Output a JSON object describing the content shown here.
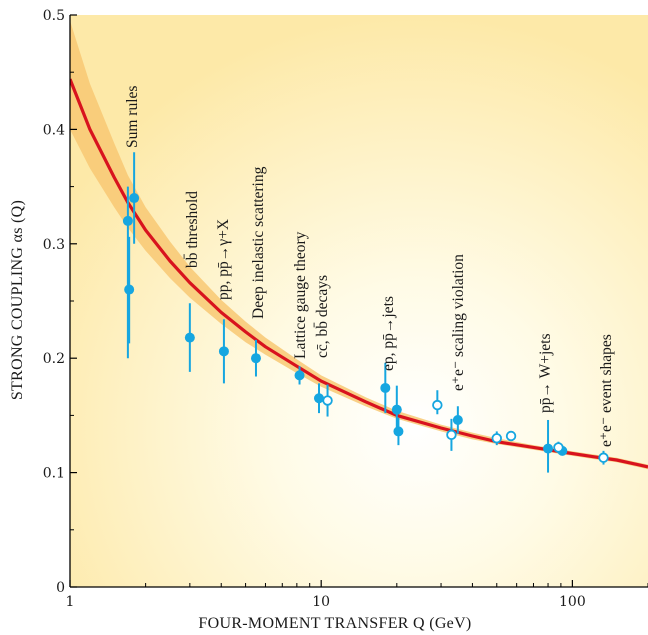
{
  "chart_data": {
    "type": "scatter",
    "xlabel": "FOUR-MOMENT TRANSFER Q (GeV)",
    "ylabel": "STRONG COUPLING αs (Q)",
    "xscale": "log",
    "xlim": [
      1,
      200
    ],
    "ylim": [
      0,
      0.5
    ],
    "xticks": [
      1,
      10,
      100
    ],
    "xtick_labels": [
      "1",
      "10",
      "100"
    ],
    "yticks": [
      0,
      0.1,
      0.2,
      0.3,
      0.4,
      0.5
    ],
    "ytick_labels": [
      "0",
      "0.1",
      "0.2",
      "0.3",
      "0.4",
      "0.5"
    ],
    "grid": false,
    "colors": {
      "curve": "#d8131e",
      "band": "#f8c873",
      "points": "#16a6e0",
      "background_glow": "#fdecb0"
    },
    "annotations": [
      "Sum rules",
      "bb̄ threshold",
      "pp, pp̄→γ+X",
      "Deep inelastic scattering",
      "Lattice gauge theory",
      "cc̄, bb̄ decays",
      "ep, pp̄→jets",
      "e⁺e⁻ scaling violation",
      "pp̄→ W+jets",
      "e⁺e⁻ event shapes"
    ],
    "curve": {
      "name": "QCD running coupling",
      "x": [
        1,
        1.2,
        1.5,
        1.7,
        2,
        2.5,
        3,
        4,
        5,
        6,
        8,
        10,
        15,
        20,
        30,
        40,
        50,
        70,
        91.2,
        120,
        150,
        200
      ],
      "y": [
        0.444,
        0.4,
        0.358,
        0.336,
        0.312,
        0.285,
        0.266,
        0.24,
        0.223,
        0.21,
        0.193,
        0.18,
        0.162,
        0.15,
        0.139,
        0.132,
        0.127,
        0.122,
        0.118,
        0.114,
        0.111,
        0.105
      ],
      "band_low": [
        0.4,
        0.366,
        0.332,
        0.314,
        0.294,
        0.27,
        0.253,
        0.23,
        0.214,
        0.203,
        0.187,
        0.175,
        0.158,
        0.147,
        0.136,
        0.129,
        0.125,
        0.12,
        0.116,
        0.112,
        0.109,
        0.103
      ],
      "band_high": [
        0.495,
        0.44,
        0.388,
        0.36,
        0.332,
        0.302,
        0.28,
        0.251,
        0.232,
        0.218,
        0.199,
        0.185,
        0.166,
        0.154,
        0.142,
        0.135,
        0.13,
        0.124,
        0.12,
        0.116,
        0.113,
        0.107
      ]
    },
    "series": [
      {
        "marker": "filled",
        "x": [
          1.7,
          1.72,
          1.8,
          3.0,
          4.1,
          5.5,
          8.2,
          9.8,
          18,
          20,
          20.3,
          35,
          80,
          91.2
        ],
        "y": [
          0.32,
          0.26,
          0.34,
          0.218,
          0.206,
          0.2,
          0.185,
          0.165,
          0.174,
          0.155,
          0.136,
          0.146,
          0.121,
          0.119
        ],
        "err_low": [
          0.12,
          0.047,
          0.04,
          0.03,
          0.028,
          0.016,
          0.008,
          0.013,
          0.022,
          0.021,
          0.012,
          0.012,
          0.021,
          0.004
        ],
        "err_high": [
          0.03,
          0.046,
          0.04,
          0.03,
          0.028,
          0.016,
          0.008,
          0.013,
          0.022,
          0.021,
          0.012,
          0.012,
          0.025,
          0.004
        ]
      },
      {
        "marker": "open",
        "x": [
          10.6,
          29,
          33,
          50,
          57,
          88,
          133
        ],
        "y": [
          0.163,
          0.159,
          0.133,
          0.13,
          0.132,
          0.122,
          0.113
        ],
        "err_low": [
          0.014,
          0.008,
          0.014,
          0.006,
          0.004,
          0.005,
          0.006
        ],
        "err_high": [
          0.014,
          0.013,
          0.014,
          0.006,
          0.004,
          0.005,
          0.006
        ]
      }
    ]
  }
}
